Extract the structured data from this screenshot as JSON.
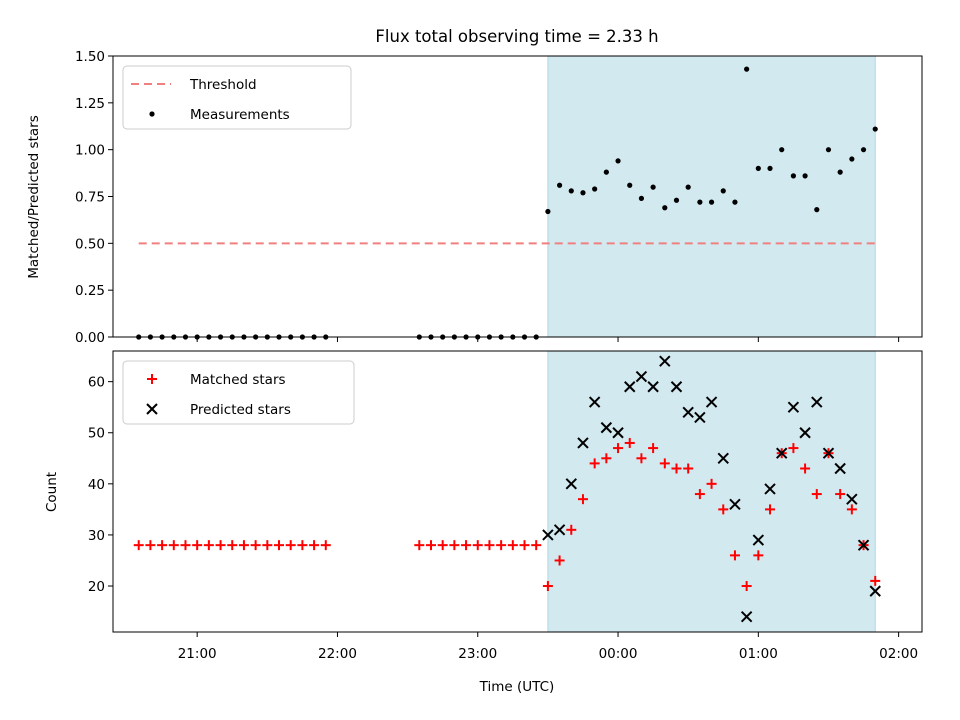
{
  "chart_data": {
    "title": "Flux total observing time = 2.33 h",
    "xlabel": "Time (UTC)",
    "x_ticks": [
      "21:00",
      "22:00",
      "23:00",
      "00:00",
      "01:00",
      "02:00"
    ],
    "x_range": [
      "20:24",
      "02:10"
    ],
    "shaded_region": {
      "start": "23:30",
      "end": "01:50",
      "color": "#d2e9f0"
    },
    "charts": [
      {
        "type": "scatter",
        "ylabel": "Matched/Predicted stars",
        "ylim": [
          0.0,
          1.5
        ],
        "y_ticks": [
          "0.00",
          "0.25",
          "0.50",
          "0.75",
          "1.00",
          "1.25",
          "1.50"
        ],
        "legend": {
          "placement": "top-left",
          "entries": [
            "Threshold",
            "Measurements"
          ]
        },
        "threshold": {
          "name": "Threshold",
          "value": 0.5,
          "x_start": "20:35",
          "x_end": "01:50",
          "color": "#f08080",
          "style": "dashed"
        },
        "series": [
          {
            "name": "Measurements",
            "marker": "dot",
            "color": "#000000",
            "x": [
              "20:35",
              "20:40",
              "20:45",
              "20:50",
              "20:55",
              "21:00",
              "21:05",
              "21:10",
              "21:15",
              "21:20",
              "21:25",
              "21:30",
              "21:35",
              "21:40",
              "21:45",
              "21:50",
              "21:55",
              "22:35",
              "22:40",
              "22:45",
              "22:50",
              "22:55",
              "23:00",
              "23:05",
              "23:10",
              "23:15",
              "23:20",
              "23:25",
              "23:30",
              "23:35",
              "23:40",
              "23:45",
              "23:50",
              "23:55",
              "00:00",
              "00:05",
              "00:10",
              "00:15",
              "00:20",
              "00:25",
              "00:30",
              "00:35",
              "00:40",
              "00:45",
              "00:50",
              "00:55",
              "01:00",
              "01:05",
              "01:10",
              "01:15",
              "01:20",
              "01:25",
              "01:30",
              "01:35",
              "01:40",
              "01:45",
              "01:50"
            ],
            "y": [
              0,
              0,
              0,
              0,
              0,
              0,
              0,
              0,
              0,
              0,
              0,
              0,
              0,
              0,
              0,
              0,
              0,
              0,
              0,
              0,
              0,
              0,
              0,
              0,
              0,
              0,
              0,
              0,
              0.67,
              0.81,
              0.78,
              0.77,
              0.79,
              0.88,
              0.94,
              0.81,
              0.74,
              0.8,
              0.69,
              0.73,
              0.8,
              0.72,
              0.72,
              0.78,
              0.72,
              1.43,
              0.9,
              0.9,
              1.0,
              0.86,
              0.86,
              0.68,
              1.0,
              0.88,
              0.95,
              1.0,
              1.11
            ]
          }
        ]
      },
      {
        "type": "scatter",
        "ylabel": "Count",
        "ylim": [
          11,
          66
        ],
        "y_ticks": [
          "20",
          "30",
          "40",
          "50",
          "60"
        ],
        "legend": {
          "placement": "top-left",
          "entries": [
            "Matched stars",
            "Predicted stars"
          ]
        },
        "series": [
          {
            "name": "Matched stars",
            "marker": "plus",
            "color": "#ff0000",
            "x": [
              "20:35",
              "20:40",
              "20:45",
              "20:50",
              "20:55",
              "21:00",
              "21:05",
              "21:10",
              "21:15",
              "21:20",
              "21:25",
              "21:30",
              "21:35",
              "21:40",
              "21:45",
              "21:50",
              "21:55",
              "22:35",
              "22:40",
              "22:45",
              "22:50",
              "22:55",
              "23:00",
              "23:05",
              "23:10",
              "23:15",
              "23:20",
              "23:25",
              "23:30",
              "23:35",
              "23:40",
              "23:45",
              "23:50",
              "23:55",
              "00:00",
              "00:05",
              "00:10",
              "00:15",
              "00:20",
              "00:25",
              "00:30",
              "00:35",
              "00:40",
              "00:45",
              "00:50",
              "00:55",
              "01:00",
              "01:05",
              "01:10",
              "01:15",
              "01:20",
              "01:25",
              "01:30",
              "01:35",
              "01:40",
              "01:45",
              "01:50"
            ],
            "y": [
              28,
              28,
              28,
              28,
              28,
              28,
              28,
              28,
              28,
              28,
              28,
              28,
              28,
              28,
              28,
              28,
              28,
              28,
              28,
              28,
              28,
              28,
              28,
              28,
              28,
              28,
              28,
              28,
              20,
              25,
              31,
              37,
              44,
              45,
              47,
              48,
              45,
              47,
              44,
              43,
              43,
              38,
              40,
              35,
              26,
              20,
              26,
              35,
              46,
              47,
              43,
              38,
              46,
              38,
              35,
              28,
              21
            ]
          },
          {
            "name": "Predicted stars",
            "marker": "x",
            "color": "#000000",
            "x": [
              "23:30",
              "23:35",
              "23:40",
              "23:45",
              "23:50",
              "23:55",
              "00:00",
              "00:05",
              "00:10",
              "00:15",
              "00:20",
              "00:25",
              "00:30",
              "00:35",
              "00:40",
              "00:45",
              "00:50",
              "00:55",
              "01:00",
              "01:05",
              "01:10",
              "01:15",
              "01:20",
              "01:25",
              "01:30",
              "01:35",
              "01:40",
              "01:45",
              "01:50"
            ],
            "y": [
              30,
              31,
              40,
              48,
              56,
              51,
              50,
              59,
              61,
              59,
              64,
              59,
              54,
              53,
              56,
              45,
              36,
              14,
              29,
              39,
              46,
              55,
              50,
              56,
              46,
              43,
              37,
              28,
              19
            ]
          }
        ]
      }
    ]
  }
}
